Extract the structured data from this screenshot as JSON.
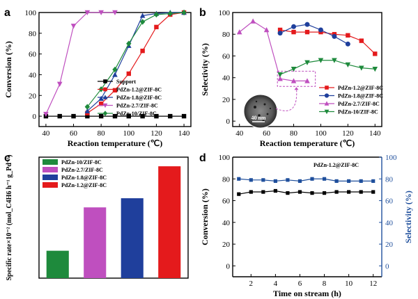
{
  "colors": {
    "support": "#000000",
    "pdzn12": "#e41a1c",
    "pdzn18": "#1f3f9c",
    "pdzn27": "#bf4fbf",
    "pdzn10": "#1e8a3c",
    "right_axis": "#1f4f9c",
    "inset_callout": "#bf4fbf"
  },
  "chart_data": [
    {
      "panel": "a",
      "type": "line",
      "xlabel": "Reaction temperature (℃)",
      "ylabel": "Conversion (%)",
      "xlim": [
        35,
        145
      ],
      "ylim": [
        -10,
        100
      ],
      "xticks": [
        40,
        60,
        80,
        100,
        120,
        140
      ],
      "yticks": [
        0,
        20,
        40,
        60,
        80,
        100
      ],
      "legend_position": "bottom-right",
      "series": [
        {
          "name": "Support",
          "color_key": "support",
          "marker": "square",
          "x": [
            40,
            50,
            60,
            70,
            80,
            90,
            100,
            110,
            120,
            130,
            140
          ],
          "y": [
            0,
            0,
            0,
            0,
            0,
            0,
            0,
            0,
            0,
            0,
            0
          ]
        },
        {
          "name": "PdZn-1.2@ZIF-8C",
          "color_key": "pdzn12",
          "marker": "square",
          "x": [
            70,
            80,
            90,
            100,
            110,
            120,
            130,
            140
          ],
          "y": [
            3,
            12,
            25,
            41,
            63,
            86,
            98,
            100
          ]
        },
        {
          "name": "PdZn-1.8@ZIF-8C",
          "color_key": "pdzn18",
          "marker": "triangle-up",
          "x": [
            70,
            80,
            90,
            100,
            110,
            120,
            130,
            140
          ],
          "y": [
            5,
            17,
            40,
            68,
            97,
            99,
            100,
            100
          ]
        },
        {
          "name": "PdZn-2.7/ZIF-8C",
          "color_key": "pdzn27",
          "marker": "triangle-down",
          "x": [
            40,
            50,
            60,
            70,
            80,
            90
          ],
          "y": [
            2,
            31,
            87,
            100,
            100,
            100
          ]
        },
        {
          "name": "PdZn-10/ZIF-8C",
          "color_key": "pdzn10",
          "marker": "diamond",
          "x": [
            70,
            80,
            90,
            100,
            110,
            120,
            130,
            140
          ],
          "y": [
            9,
            26,
            45,
            70,
            91,
            98,
            99,
            100
          ]
        }
      ]
    },
    {
      "panel": "b",
      "type": "line",
      "xlabel": "Reaction temperature (℃)",
      "ylabel": "Selectivity (%)",
      "xlim": [
        35,
        145
      ],
      "ylim": [
        -5,
        100
      ],
      "xticks": [
        40,
        60,
        80,
        100,
        120,
        140
      ],
      "yticks": [
        0,
        20,
        40,
        60,
        80,
        100
      ],
      "legend_position": "bottom-right",
      "inset_label": "40 nm",
      "series": [
        {
          "name": "PdZn-1.2@ZIF-8C",
          "color_key": "pdzn12",
          "marker": "square",
          "x": [
            70,
            80,
            90,
            100,
            110,
            120,
            130,
            140
          ],
          "y": [
            84,
            82,
            82,
            82,
            80,
            79,
            74,
            62
          ]
        },
        {
          "name": "PdZn-1.8@ZIF-8C",
          "color_key": "pdzn18",
          "marker": "circle",
          "x": [
            70,
            80,
            90,
            100,
            110,
            120
          ],
          "y": [
            81,
            87,
            89,
            84,
            78,
            71
          ]
        },
        {
          "name": "PdZn-2.7/ZIF-8C",
          "color_key": "pdzn27",
          "marker": "triangle-up",
          "x": [
            40,
            50,
            60,
            70,
            80,
            90
          ],
          "y": [
            82,
            92,
            84,
            39,
            37,
            37
          ]
        },
        {
          "name": "PdZn-10/ZIF-8C",
          "color_key": "pdzn10",
          "marker": "triangle-down",
          "x": [
            70,
            80,
            90,
            100,
            110,
            120,
            130,
            140
          ],
          "y": [
            43,
            48,
            54,
            56,
            56,
            52,
            49,
            48
          ]
        }
      ]
    },
    {
      "panel": "c",
      "type": "bar",
      "ylabel": "Specific rate×10⁻² (mol_C4H6 h⁻¹ g_Pd⁻¹)",
      "ylim": [
        0,
        5.3
      ],
      "legend_position": "top-left",
      "categories": [
        "PdZn-10/ZIF-8C",
        "PdZn-2.7/ZIF-8C",
        "PdZn-1.8@ZIF-8C",
        "PdZn-1.2@ZIF-8C"
      ],
      "color_keys": [
        "pdzn10",
        "pdzn27",
        "pdzn18",
        "pdzn12"
      ],
      "values": [
        1.2,
        3.1,
        3.5,
        4.9
      ]
    },
    {
      "panel": "d",
      "type": "line",
      "xlabel": "Time on stream (h)",
      "ylabel": "Conversion (%)",
      "y2label": "Selectivity (%)",
      "xlim": [
        0.5,
        12.7
      ],
      "ylim": [
        -10,
        100
      ],
      "y2lim": [
        -10,
        100
      ],
      "xticks": [
        2,
        4,
        6,
        8,
        10,
        12
      ],
      "yticks": [
        0,
        20,
        40,
        60,
        80,
        100
      ],
      "y2ticks": [
        0,
        20,
        40,
        60,
        80,
        100
      ],
      "annotation": "PdZn-1.2@ZIF-8C",
      "series": [
        {
          "name": "Conversion",
          "axis": "left",
          "color_key": "support",
          "marker": "square",
          "x": [
            1,
            2,
            3,
            4,
            5,
            6,
            7,
            8,
            9,
            10,
            11,
            12
          ],
          "y": [
            66,
            68,
            68,
            69,
            67,
            68,
            67,
            67,
            68,
            68,
            68,
            68
          ]
        },
        {
          "name": "Selectivity",
          "axis": "right",
          "color_key": "right_axis",
          "marker": "square",
          "x": [
            1,
            2,
            3,
            4,
            5,
            6,
            7,
            8,
            9,
            10,
            11,
            12
          ],
          "y": [
            80,
            79,
            79,
            78,
            79,
            78,
            80,
            80,
            78,
            78,
            78,
            78
          ]
        }
      ]
    }
  ],
  "panel_labels": [
    "a",
    "b",
    "c",
    "d"
  ]
}
